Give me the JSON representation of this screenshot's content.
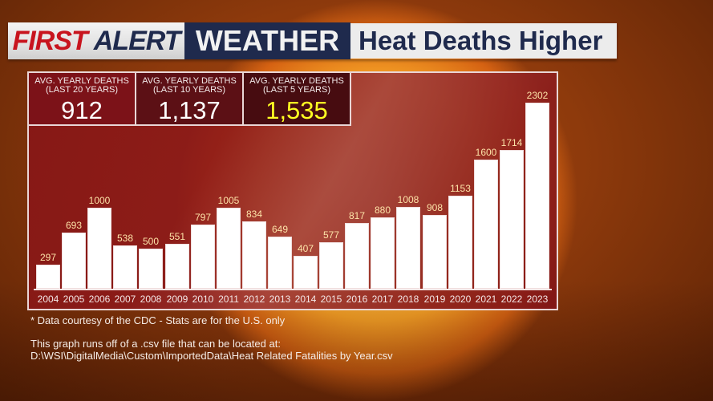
{
  "header": {
    "brand_first": "FIRST",
    "brand_alert": "ALERT",
    "brand_weather": "WEATHER",
    "title": "Heat Deaths Higher"
  },
  "stats": [
    {
      "label_line1": "AVG. YEARLY DEATHS",
      "label_line2": "(LAST 20 YEARS)",
      "value": "912"
    },
    {
      "label_line1": "AVG. YEARLY DEATHS",
      "label_line2": "(LAST 10 YEARS)",
      "value": "1,137"
    },
    {
      "label_line1": "AVG. YEARLY DEATHS",
      "label_line2": "(LAST 5 YEARS)",
      "value": "1,535",
      "color": "#ffff22"
    }
  ],
  "footer": {
    "source_note": "* Data courtesy of the CDC - Stats are for the U.S. only",
    "csv_note": "This graph runs off of a .csv file that can be located at:",
    "csv_path": "D:\\WSI\\DigitalMedia\\Custom\\ImportedData\\Heat Related Fatalities by Year.csv"
  },
  "colors": {
    "brand_red": "#c8141e",
    "brand_navy": "#1f2a4d",
    "panel_red": "#871616",
    "bar_fill": "#ffffff",
    "value_label": "#fde3a8",
    "highlight_value": "#ffff22"
  },
  "chart_data": {
    "type": "bar",
    "title": "Heat Deaths Higher",
    "xlabel": "",
    "ylabel": "",
    "categories": [
      "2004",
      "2005",
      "2006",
      "2007",
      "2008",
      "2009",
      "2010",
      "2011",
      "2012",
      "2013",
      "2014",
      "2015",
      "2016",
      "2017",
      "2018",
      "2019",
      "2020",
      "2021",
      "2022",
      "2023"
    ],
    "values": [
      297,
      693,
      1000,
      538,
      500,
      551,
      797,
      1005,
      834,
      649,
      407,
      577,
      817,
      880,
      1008,
      908,
      1153,
      1600,
      1714,
      2302
    ],
    "ylim": [
      0,
      2302
    ],
    "grid": false,
    "legend": null,
    "data_labels": true,
    "summary_stats": {
      "avg_last_20_years": 912,
      "avg_last_10_years": 1137,
      "avg_last_5_years": 1535
    }
  }
}
